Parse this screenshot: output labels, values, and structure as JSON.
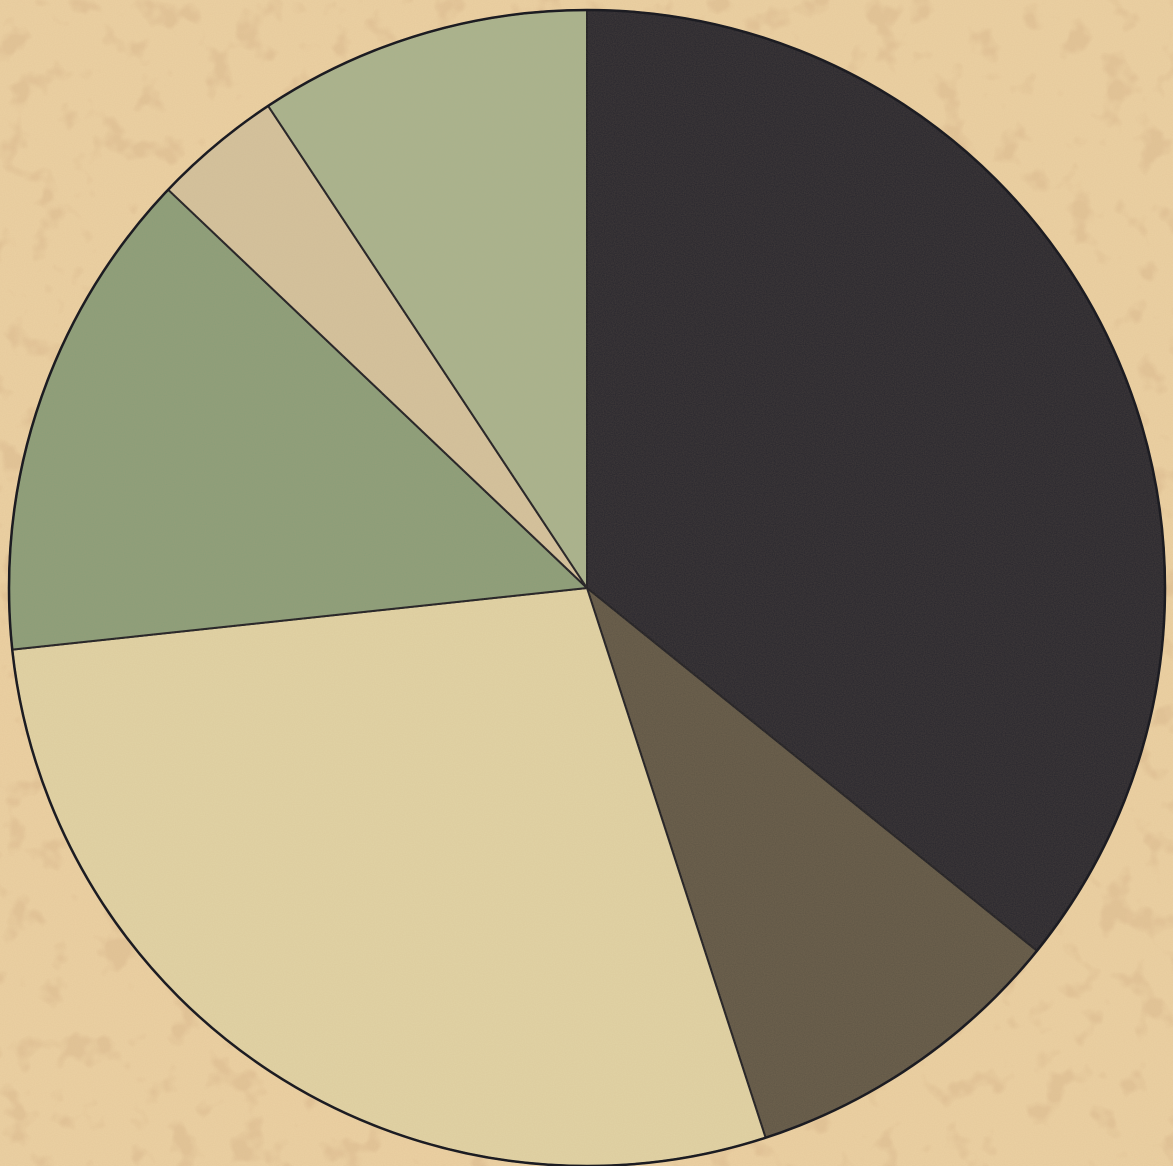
{
  "chart_data": {
    "type": "pie",
    "start": "12 o'clock",
    "direction": "clockwise",
    "legend": "none",
    "labels": "none",
    "slices": [
      {
        "value": 35.8,
        "color": "#26252d",
        "stroke": "#1c1c22"
      },
      {
        "value": 9.2,
        "color": "#5e5545",
        "stroke": "#1c1c22"
      },
      {
        "value": 28.3,
        "color": "#e1d3a5",
        "stroke": "#1c1c22"
      },
      {
        "value": 13.8,
        "color": "#8a9d79",
        "stroke": "#1c1c22"
      },
      {
        "value": 3.6,
        "color": "#d4c29d",
        "stroke": "#1c1c22"
      },
      {
        "value": 9.3,
        "color": "#a8b38e",
        "stroke": "#1c1c22"
      }
    ]
  },
  "paper": {
    "background": "#ecd1a3",
    "foxing": "#c9955c"
  }
}
